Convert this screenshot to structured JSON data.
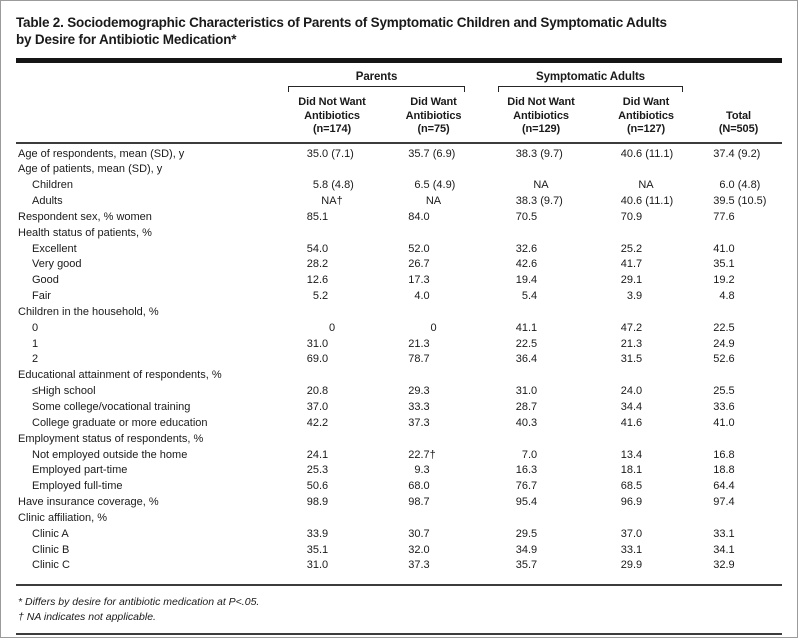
{
  "window": {
    "background": "#ffffff",
    "border_color": "#9b9b9b",
    "text_color": "#1a1a1a",
    "rule_color": "#3c3c3c",
    "thick_rule_color": "#151515"
  },
  "title": "Table 2. Sociodemographic Characteristics of Parents of Symptomatic Children and Symptomatic Adults\nby Desire for Antibiotic Medication*",
  "header": {
    "groups": [
      {
        "label": "Parents"
      },
      {
        "label": "Symptomatic Adults"
      }
    ],
    "columns": [
      {
        "text": "Did Not Want\nAntibiotics\n(n=174)"
      },
      {
        "text": "Did Want\nAntibiotics\n(n=75)"
      },
      {
        "text": "Did Not Want\nAntibiotics\n(n=129)"
      },
      {
        "text": "Did Want\nAntibiotics\n(n=127)"
      },
      {
        "text": "Total\n(N=505)"
      }
    ]
  },
  "table": {
    "rows": [
      {
        "label": "Age of respondents, mean (SD), y",
        "indent": 0,
        "values": [
          "35.0 (7.1)",
          "35.7 (6.9)",
          "38.3 (9.7)",
          "40.6 (11.1)",
          "37.4 (9.2)"
        ]
      },
      {
        "label": "Age of patients, mean (SD), y",
        "indent": 0,
        "values": [
          "",
          "",
          "",
          "",
          ""
        ]
      },
      {
        "label": "Children",
        "indent": 1,
        "values": [
          "5.8 (4.8)",
          "6.5 (4.9)",
          "NA",
          "NA",
          "6.0 (4.8)"
        ]
      },
      {
        "label": "Adults",
        "indent": 1,
        "values": [
          "NA†",
          "NA",
          "38.3 (9.7)",
          "40.6 (11.1)",
          "39.5 (10.5)"
        ]
      },
      {
        "label": "Respondent sex, % women",
        "indent": 0,
        "values": [
          "85.1",
          "84.0",
          "70.5",
          "70.9",
          "77.6"
        ]
      },
      {
        "label": "Health status of patients, %",
        "indent": 0,
        "values": [
          "",
          "",
          "",
          "",
          ""
        ]
      },
      {
        "label": "Excellent",
        "indent": 1,
        "values": [
          "54.0",
          "52.0",
          "32.6",
          "25.2",
          "41.0"
        ]
      },
      {
        "label": "Very good",
        "indent": 1,
        "values": [
          "28.2",
          "26.7",
          "42.6",
          "41.7",
          "35.1"
        ]
      },
      {
        "label": "Good",
        "indent": 1,
        "values": [
          "12.6",
          "17.3",
          "19.4",
          "29.1",
          "19.2"
        ]
      },
      {
        "label": "Fair",
        "indent": 1,
        "values": [
          "5.2",
          "4.0",
          "5.4",
          "3.9",
          "4.8"
        ]
      },
      {
        "label": "Children in the household, %",
        "indent": 0,
        "values": [
          "",
          "",
          "",
          "",
          ""
        ]
      },
      {
        "label": "0",
        "indent": 1,
        "values": [
          "0",
          "0",
          "41.1",
          "47.2",
          "22.5"
        ]
      },
      {
        "label": "1",
        "indent": 1,
        "values": [
          "31.0",
          "21.3",
          "22.5",
          "21.3",
          "24.9"
        ]
      },
      {
        "label": "2",
        "indent": 1,
        "values": [
          "69.0",
          "78.7",
          "36.4",
          "31.5",
          "52.6"
        ]
      },
      {
        "label": "Educational attainment of respondents, %",
        "indent": 0,
        "values": [
          "",
          "",
          "",
          "",
          ""
        ]
      },
      {
        "label": "≤High school",
        "indent": 1,
        "values": [
          "20.8",
          "29.3",
          "31.0",
          "24.0",
          "25.5"
        ]
      },
      {
        "label": "Some college/vocational training",
        "indent": 1,
        "values": [
          "37.0",
          "33.3",
          "28.7",
          "34.4",
          "33.6"
        ]
      },
      {
        "label": "College graduate or more education",
        "indent": 1,
        "values": [
          "42.2",
          "37.3",
          "40.3",
          "41.6",
          "41.0"
        ]
      },
      {
        "label": "Employment status of respondents, %",
        "indent": 0,
        "values": [
          "",
          "",
          "",
          "",
          ""
        ]
      },
      {
        "label": "Not employed outside the home",
        "indent": 1,
        "values": [
          "24.1",
          "22.7†",
          "7.0",
          "13.4",
          "16.8"
        ]
      },
      {
        "label": "Employed part-time",
        "indent": 1,
        "values": [
          "25.3",
          "9.3",
          "16.3",
          "18.1",
          "18.8"
        ]
      },
      {
        "label": "Employed full-time",
        "indent": 1,
        "values": [
          "50.6",
          "68.0",
          "76.7",
          "68.5",
          "64.4"
        ]
      },
      {
        "label": "Have insurance coverage, %",
        "indent": 0,
        "values": [
          "98.9",
          "98.7",
          "95.4",
          "96.9",
          "97.4"
        ]
      },
      {
        "label": "Clinic affiliation, %",
        "indent": 0,
        "values": [
          "",
          "",
          "",
          "",
          ""
        ]
      },
      {
        "label": "Clinic A",
        "indent": 1,
        "values": [
          "33.9",
          "30.7",
          "29.5",
          "37.0",
          "33.1"
        ]
      },
      {
        "label": "Clinic B",
        "indent": 1,
        "values": [
          "35.1",
          "32.0",
          "34.9",
          "33.1",
          "34.1"
        ]
      },
      {
        "label": "Clinic C",
        "indent": 1,
        "values": [
          "31.0",
          "37.3",
          "35.7",
          "29.9",
          "32.9"
        ]
      }
    ]
  },
  "footnotes": [
    "* Differs by desire for antibiotic medication at P<.05.",
    "† NA indicates not applicable."
  ]
}
